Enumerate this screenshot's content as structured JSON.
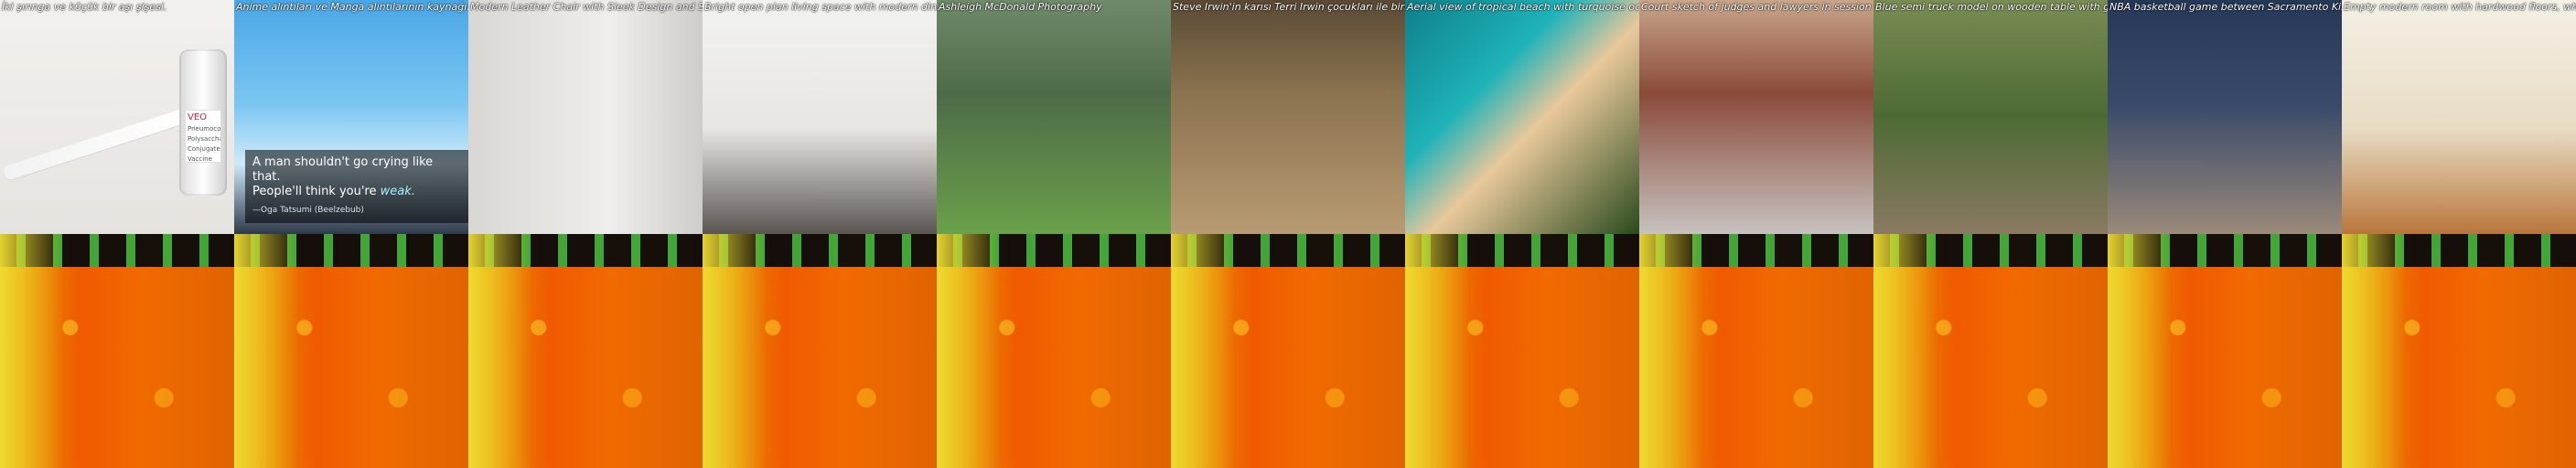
{
  "grid": {
    "captions_top_row": [
      "İki şırınga ve küçük bir aşı şişesi.",
      "Anime alıntıları ve Manga alıntılarının kaynağı: İlham Verici, Motivasyonel, Sevgi ve Romantik Sözler",
      "Modern Leather Chair with Sleek Design and Soft Cushions Perfect for Your Living Room or Office Space",
      "Bright open plan living space with modern dining area and kitchen, light walls, wood flooring",
      "Ashleigh McDonald Photography",
      "Steve Irwin'in karısı Terri Irwin çocukları ile birlikte hayvanat bahçesinde, timsahların yanında",
      "Aerial view of tropical beach with turquoise ocean and dense green forest near the shore",
      "Court sketch of judges and lawyers in session",
      "Blue semi truck model on wooden table with green background and grass",
      "NBA basketball game between Sacramento Kings and Golden State Warriors",
      "Empty modern room with hardwood floors, white walls and red kitchen cabinets"
    ],
    "meme": {
      "line1": "A man shouldn't go crying like that.",
      "line2_prefix": "People'll think you're ",
      "line2_emph": "weak.",
      "author": "—Oga Tatsumi (Beelzebub)"
    },
    "vial_label": {
      "brand": "VEO",
      "text": "Pneumococcal Polysaccharide Conjugate Vaccine"
    }
  },
  "colors": {
    "caption_text": "#ffffff",
    "bottom_orange": "#f05a00",
    "bottom_yellow": "#e2a200"
  }
}
